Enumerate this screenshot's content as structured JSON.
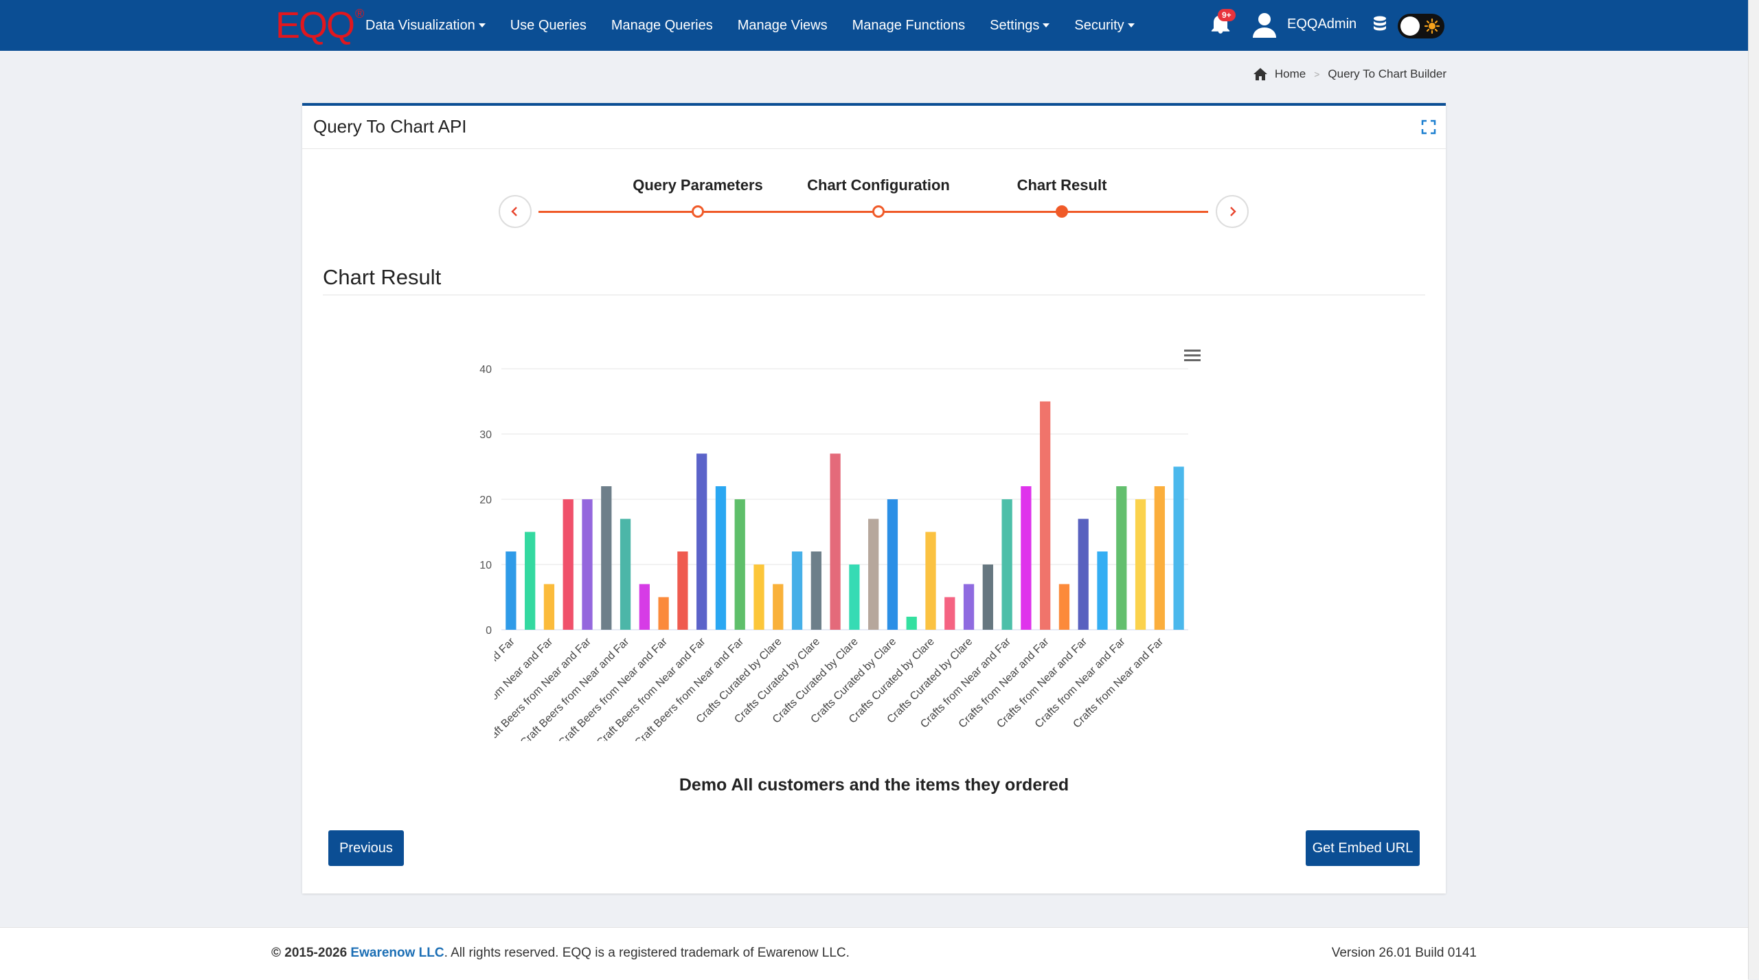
{
  "brand": {
    "logo_text": "EQQ",
    "logo_mark": "®"
  },
  "nav": {
    "items": [
      {
        "label": "Data Visualization",
        "dropdown": true
      },
      {
        "label": "Use Queries",
        "dropdown": false
      },
      {
        "label": "Manage Queries",
        "dropdown": false
      },
      {
        "label": "Manage Views",
        "dropdown": false
      },
      {
        "label": "Manage Functions",
        "dropdown": false
      },
      {
        "label": "Settings",
        "dropdown": true
      },
      {
        "label": "Security",
        "dropdown": true
      }
    ],
    "notification_badge": "9+",
    "user_name": "EQQAdmin"
  },
  "breadcrumb": {
    "home": "Home",
    "current": "Query To Chart Builder"
  },
  "card": {
    "title": "Query To Chart API"
  },
  "wizard": {
    "steps": [
      {
        "label": "Query Parameters",
        "active": false
      },
      {
        "label": "Chart Configuration",
        "active": false
      },
      {
        "label": "Chart Result",
        "active": true
      }
    ]
  },
  "section": {
    "title": "Chart Result"
  },
  "chart_data": {
    "type": "bar",
    "title": "Demo All customers and the items they ordered",
    "xlabel": "",
    "ylabel": "",
    "ylim": [
      0,
      40
    ],
    "yticks": [
      0,
      10,
      20,
      30,
      40
    ],
    "grid": true,
    "legend": "none",
    "categories": [
      "Craft Beers from Near and Far",
      "Craft Beers from Near and Far",
      "Craft Beers from Near and Far",
      "Craft Beers from Near and Far",
      "Craft Beers from Near and Far",
      "Craft Beers from Near and Far",
      "Craft Beers from Near and Far",
      "Craft Beers from Near and Far",
      "Craft Beers from Near and Far",
      "Craft Beers from Near and Far",
      "Craft Beers from Near and Far",
      "Craft Beers from Near and Far",
      "Craft Beers from Near and Far",
      "Crafts Curated by Clare",
      "Crafts Curated by Clare",
      "Crafts Curated by Clare",
      "Crafts Curated by Clare",
      "Crafts Curated by Clare",
      "Crafts Curated by Clare",
      "Crafts Curated by Clare",
      "Crafts Curated by Clare",
      "Crafts Curated by Clare",
      "Crafts Curated by Clare",
      "Crafts Curated by Clare",
      "Crafts Curated by Clare",
      "Crafts Curated by Clare",
      "Crafts from Near and Far",
      "Crafts from Near and Far",
      "Crafts from Near and Far",
      "Crafts from Near and Far",
      "Crafts from Near and Far",
      "Crafts from Near and Far",
      "Crafts from Near and Far",
      "Crafts from Near and Far",
      "Crafts from Near and Far",
      "Crafts from Near and Far"
    ],
    "tick_labels": [
      "Craft Beers from Near and Far",
      "Craft Beers from Near and Far",
      "Craft Beers from Near and Far",
      "Craft Beers from Near and Far",
      "Craft Beers from Near and Far",
      "Craft Beers from Near and Far",
      "Craft Beers from Near and Far",
      "Crafts Curated by Clare",
      "Crafts Curated by Clare",
      "Crafts Curated by Clare",
      "Crafts Curated by Clare",
      "Crafts Curated by Clare",
      "Crafts Curated by Clare",
      "Crafts from Near and Far",
      "Crafts from Near and Far",
      "Crafts from Near and Far",
      "Crafts from Near and Far",
      "Crafts from Near and Far"
    ],
    "values": [
      12,
      15,
      7,
      20,
      20,
      22,
      17,
      7,
      5,
      12,
      27,
      22,
      20,
      10,
      7,
      12,
      12,
      27,
      10,
      17,
      20,
      2,
      15,
      5,
      7,
      10,
      20,
      22,
      35,
      7,
      17,
      12,
      22,
      20,
      22,
      25
    ],
    "colors": [
      "#2f9be8",
      "#34d9a0",
      "#fbbb3b",
      "#f0516b",
      "#9467dd",
      "#6e7f8a",
      "#4cb6a8",
      "#d63ce6",
      "#fb8a3b",
      "#ef5a4f",
      "#5b63c9",
      "#2aa7f2",
      "#5fbf6a",
      "#fcc63a",
      "#f9b13a",
      "#45afe8",
      "#6d7f8a",
      "#e46a7a",
      "#36dbb4",
      "#b6a79c",
      "#2b8fe6",
      "#34e0a0",
      "#fbc241",
      "#f56382",
      "#8f6be0",
      "#667780",
      "#4cbfa9",
      "#df33ec",
      "#f0746b",
      "#fc8a3a",
      "#5961bf",
      "#34aef3",
      "#63bf6e",
      "#fbd24d",
      "#fbae3c",
      "#4bb8ec"
    ]
  },
  "buttons": {
    "previous": "Previous",
    "embed": "Get Embed URL"
  },
  "footer": {
    "copyright": "© 2015-2026",
    "company": "Ewarenow LLC",
    "rights": ". All rights reserved. EQQ is a registered trademark of Ewarenow LLC.",
    "version": "Version 26.01 Build 0141"
  }
}
